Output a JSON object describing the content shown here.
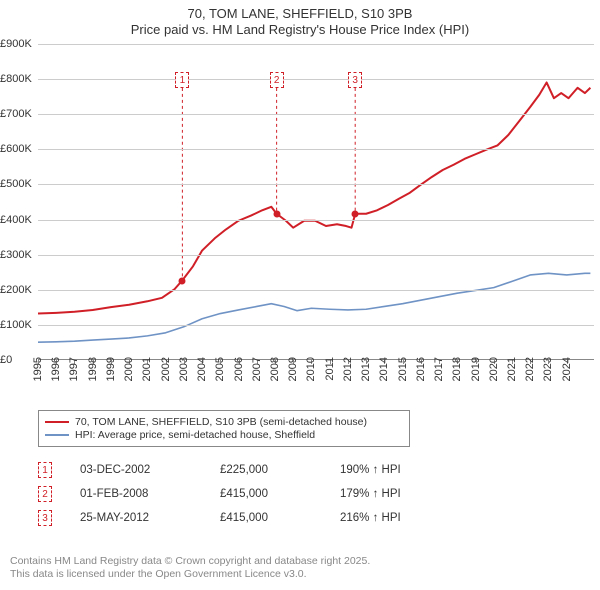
{
  "title": {
    "line1": "70, TOM LANE, SHEFFIELD, S10 3PB",
    "line2": "Price paid vs. HM Land Registry's House Price Index (HPI)"
  },
  "chart": {
    "type": "line",
    "background_color": "#ffffff",
    "grid_color": "#cccccc",
    "axis_color": "#888888",
    "text_color": "#333333",
    "x": {
      "min": 1995,
      "max": 2025.5,
      "tick_step": 1,
      "last_tick": 2024,
      "label_fontsize": 11,
      "label_rotation_deg": -90
    },
    "y": {
      "min": 0,
      "max": 900000,
      "tick_step": 100000,
      "tick_format_prefix": "£",
      "tick_format_suffix": "K",
      "label_fontsize": 11
    },
    "series": [
      {
        "name": "70, TOM LANE, SHEFFIELD, S10 3PB (semi-detached house)",
        "color": "#d01f27",
        "line_width": 2,
        "points": [
          [
            1995.0,
            130000
          ],
          [
            1996.0,
            132000
          ],
          [
            1997.0,
            135000
          ],
          [
            1998.0,
            140000
          ],
          [
            1999.0,
            148000
          ],
          [
            2000.0,
            155000
          ],
          [
            2001.0,
            165000
          ],
          [
            2001.8,
            175000
          ],
          [
            2002.5,
            200000
          ],
          [
            2002.92,
            225000
          ],
          [
            2003.5,
            265000
          ],
          [
            2004.0,
            310000
          ],
          [
            2004.7,
            345000
          ],
          [
            2005.3,
            370000
          ],
          [
            2006.0,
            395000
          ],
          [
            2006.7,
            410000
          ],
          [
            2007.3,
            425000
          ],
          [
            2007.8,
            435000
          ],
          [
            2008.09,
            415000
          ],
          [
            2008.6,
            395000
          ],
          [
            2009.0,
            375000
          ],
          [
            2009.6,
            395000
          ],
          [
            2010.2,
            395000
          ],
          [
            2010.8,
            380000
          ],
          [
            2011.4,
            385000
          ],
          [
            2011.9,
            380000
          ],
          [
            2012.2,
            375000
          ],
          [
            2012.4,
            415000
          ],
          [
            2013.0,
            415000
          ],
          [
            2013.6,
            425000
          ],
          [
            2014.2,
            440000
          ],
          [
            2014.8,
            458000
          ],
          [
            2015.4,
            475000
          ],
          [
            2016.0,
            498000
          ],
          [
            2016.6,
            520000
          ],
          [
            2017.2,
            540000
          ],
          [
            2017.8,
            555000
          ],
          [
            2018.4,
            572000
          ],
          [
            2019.0,
            585000
          ],
          [
            2019.6,
            598000
          ],
          [
            2020.2,
            610000
          ],
          [
            2020.8,
            640000
          ],
          [
            2021.4,
            680000
          ],
          [
            2022.0,
            720000
          ],
          [
            2022.5,
            755000
          ],
          [
            2022.9,
            790000
          ],
          [
            2023.3,
            745000
          ],
          [
            2023.7,
            760000
          ],
          [
            2024.1,
            745000
          ],
          [
            2024.6,
            775000
          ],
          [
            2025.0,
            760000
          ],
          [
            2025.3,
            775000
          ]
        ]
      },
      {
        "name": "HPI: Average price, semi-detached house, Sheffield",
        "color": "#6f93c5",
        "line_width": 1.6,
        "points": [
          [
            1995.0,
            48000
          ],
          [
            1996.0,
            49000
          ],
          [
            1997.0,
            51000
          ],
          [
            1998.0,
            54000
          ],
          [
            1999.0,
            57000
          ],
          [
            2000.0,
            60000
          ],
          [
            2001.0,
            66000
          ],
          [
            2002.0,
            75000
          ],
          [
            2003.0,
            92000
          ],
          [
            2004.0,
            115000
          ],
          [
            2005.0,
            130000
          ],
          [
            2006.0,
            140000
          ],
          [
            2007.0,
            150000
          ],
          [
            2007.8,
            158000
          ],
          [
            2008.5,
            150000
          ],
          [
            2009.2,
            138000
          ],
          [
            2010.0,
            145000
          ],
          [
            2011.0,
            142000
          ],
          [
            2012.0,
            140000
          ],
          [
            2013.0,
            142000
          ],
          [
            2014.0,
            150000
          ],
          [
            2015.0,
            158000
          ],
          [
            2016.0,
            168000
          ],
          [
            2017.0,
            178000
          ],
          [
            2018.0,
            188000
          ],
          [
            2019.0,
            196000
          ],
          [
            2020.0,
            204000
          ],
          [
            2021.0,
            222000
          ],
          [
            2022.0,
            240000
          ],
          [
            2023.0,
            245000
          ],
          [
            2024.0,
            240000
          ],
          [
            2025.0,
            245000
          ],
          [
            2025.3,
            245000
          ]
        ]
      }
    ],
    "markers": [
      {
        "label": "1",
        "x": 2002.92,
        "y": 225000
      },
      {
        "label": "2",
        "x": 2008.09,
        "y": 415000
      },
      {
        "label": "3",
        "x": 2012.4,
        "y": 415000
      }
    ],
    "marker_box_top_y": 820000
  },
  "legend": {
    "items": [
      {
        "color": "#d01f27",
        "label": "70, TOM LANE, SHEFFIELD, S10 3PB (semi-detached house)"
      },
      {
        "color": "#6f93c5",
        "label": "HPI: Average price, semi-detached house, Sheffield"
      }
    ]
  },
  "sales": [
    {
      "marker": "1",
      "date": "03-DEC-2002",
      "price": "£225,000",
      "hpi": "190% ↑ HPI"
    },
    {
      "marker": "2",
      "date": "01-FEB-2008",
      "price": "£415,000",
      "hpi": "179% ↑ HPI"
    },
    {
      "marker": "3",
      "date": "25-MAY-2012",
      "price": "£415,000",
      "hpi": "216% ↑ HPI"
    }
  ],
  "footer": {
    "line1": "Contains HM Land Registry data © Crown copyright and database right 2025.",
    "line2": "This data is licensed under the Open Government Licence v3.0."
  }
}
